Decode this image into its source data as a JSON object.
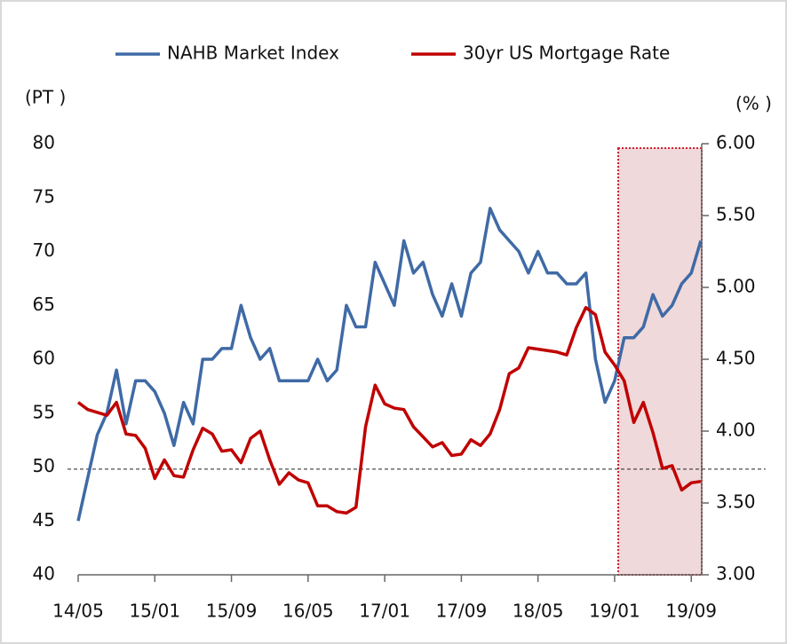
{
  "chart_data": {
    "type": "line",
    "y_label": "(PT )",
    "y2_label": "(% )",
    "categories": [
      "14/05",
      null,
      null,
      null,
      null,
      null,
      null,
      null,
      "15/01",
      null,
      null,
      null,
      null,
      null,
      null,
      null,
      "15/09",
      null,
      null,
      null,
      null,
      null,
      null,
      null,
      "16/05",
      null,
      null,
      null,
      null,
      null,
      null,
      null,
      "17/01",
      null,
      null,
      null,
      null,
      null,
      null,
      null,
      "17/09",
      null,
      null,
      null,
      null,
      null,
      null,
      null,
      "18/05",
      null,
      null,
      null,
      null,
      null,
      null,
      null,
      "19/01",
      null,
      null,
      null,
      null,
      null,
      null,
      null,
      "19/09",
      null
    ],
    "series": [
      {
        "name": "NAHB Market Index",
        "color": "#3f6aa6",
        "axis": "y",
        "values": [
          45,
          49,
          53,
          55,
          59,
          54,
          58,
          58,
          57,
          55,
          52,
          56,
          54,
          60,
          60,
          61,
          61,
          65,
          62,
          60,
          61,
          58,
          58,
          58,
          58,
          60,
          58,
          59,
          65,
          63,
          63,
          69,
          67,
          65,
          71,
          68,
          69,
          66,
          64,
          67,
          64,
          68,
          69,
          74,
          72,
          71,
          70,
          68,
          70,
          68,
          68,
          67,
          67,
          68,
          60,
          56,
          58,
          62,
          62,
          63,
          66,
          64,
          65,
          67,
          68,
          71
        ]
      },
      {
        "name": "30yr US Mortgage Rate",
        "color": "#c00000",
        "axis": "y2",
        "values": [
          4.2,
          4.15,
          4.13,
          4.11,
          4.2,
          3.98,
          3.97,
          3.88,
          3.67,
          3.8,
          3.69,
          3.68,
          3.87,
          4.02,
          3.98,
          3.86,
          3.87,
          3.78,
          3.95,
          4.0,
          3.8,
          3.63,
          3.71,
          3.66,
          3.64,
          3.48,
          3.48,
          3.44,
          3.43,
          3.47,
          4.03,
          4.32,
          4.19,
          4.16,
          4.15,
          4.03,
          3.96,
          3.89,
          3.92,
          3.83,
          3.84,
          3.94,
          3.9,
          3.98,
          4.15,
          4.4,
          4.44,
          4.58,
          4.57,
          4.56,
          4.55,
          4.53,
          4.72,
          4.86,
          4.81,
          4.55,
          4.46,
          4.35,
          4.06,
          4.2,
          3.99,
          3.74,
          3.76,
          3.59,
          3.64,
          3.65
        ]
      }
    ],
    "ylim": [
      40,
      80
    ],
    "yticks": [
      40,
      45,
      50,
      55,
      60,
      65,
      70,
      75,
      80
    ],
    "y2lim": [
      3,
      6
    ],
    "y2ticks": [
      {
        "value": 3,
        "label": "3.00"
      },
      {
        "value": 3.5,
        "label": "3.50"
      },
      {
        "value": 4,
        "label": "4.00"
      },
      {
        "value": 4.5,
        "label": "4.50"
      },
      {
        "value": 5,
        "label": "5.00"
      },
      {
        "value": 5.5,
        "label": "5.50"
      },
      {
        "value": 6,
        "label": "6.00"
      }
    ],
    "reference_line": {
      "value": 49.8,
      "axis": "y"
    },
    "legend": "top"
  }
}
